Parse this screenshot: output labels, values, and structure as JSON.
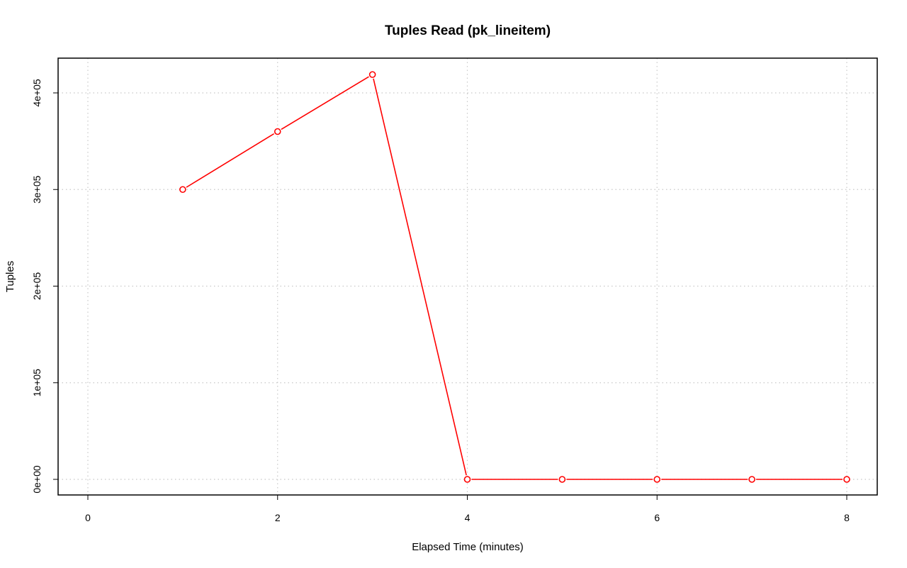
{
  "chart_data": {
    "type": "line",
    "title": "Tuples Read (pk_lineitem)",
    "xlabel": "Elapsed Time (minutes)",
    "ylabel": "Tuples",
    "xlim": [
      0,
      8
    ],
    "ylim": [
      0,
      420000
    ],
    "xticks": [
      0,
      2,
      4,
      6,
      8
    ],
    "xtick_labels": [
      "0",
      "2",
      "4",
      "6",
      "8"
    ],
    "yticks": [
      0,
      100000,
      200000,
      300000,
      400000
    ],
    "ytick_labels": [
      "0e+00",
      "1e+05",
      "2e+05",
      "3e+05",
      "4e+05"
    ],
    "grid": true,
    "legend": "none",
    "series": [
      {
        "color": "#ff0000",
        "marker": "open-circle",
        "x": [
          1,
          2,
          3,
          4,
          5,
          6,
          7,
          8
        ],
        "y": [
          300000,
          360000,
          419000,
          0,
          0,
          0,
          0,
          0
        ]
      }
    ]
  }
}
